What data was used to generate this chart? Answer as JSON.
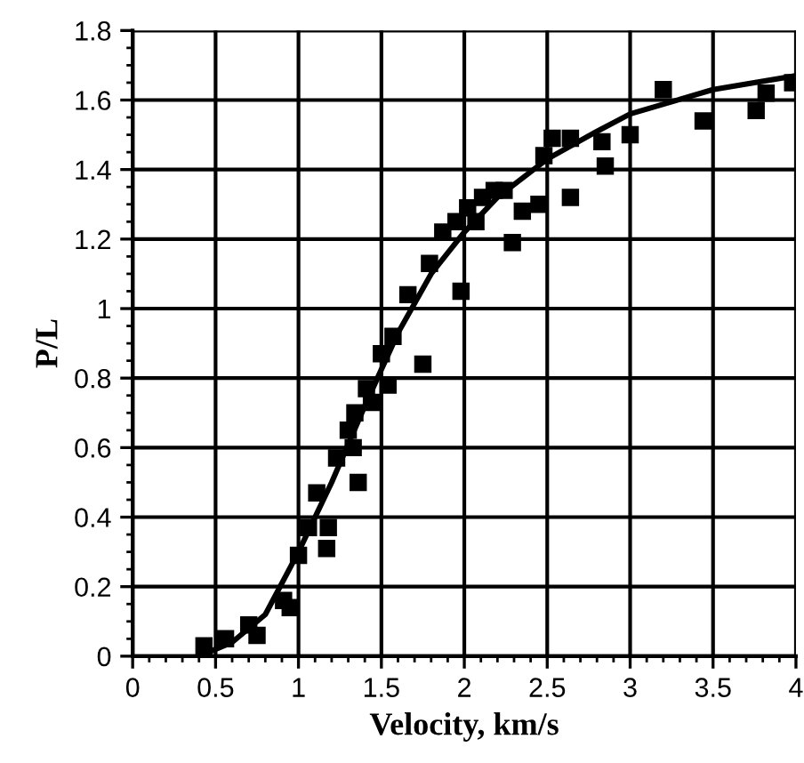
{
  "chart_data": {
    "type": "scatter",
    "xlabel": "Velocity, km/s",
    "ylabel": "P/L",
    "xlim": [
      0,
      4
    ],
    "ylim": [
      0,
      1.8
    ],
    "xticks": [
      0,
      {
        "value": 0.1,
        "label": null
      },
      {
        "value": 0.2,
        "label": null
      },
      {
        "value": 0.3,
        "label": null
      },
      {
        "value": 0.4,
        "label": null
      },
      0.5,
      {
        "value": 0.6,
        "label": null
      },
      {
        "value": 0.7,
        "label": null
      },
      {
        "value": 0.8,
        "label": null
      },
      {
        "value": 0.9,
        "label": null
      },
      1,
      {
        "value": 1.1,
        "label": null
      },
      {
        "value": 1.2,
        "label": null
      },
      {
        "value": 1.3,
        "label": null
      },
      {
        "value": 1.4,
        "label": null
      },
      1.5,
      {
        "value": 1.6,
        "label": null
      },
      {
        "value": 1.7,
        "label": null
      },
      {
        "value": 1.8,
        "label": null
      },
      {
        "value": 1.9,
        "label": null
      },
      2,
      {
        "value": 2.1,
        "label": null
      },
      {
        "value": 2.2,
        "label": null
      },
      {
        "value": 2.3,
        "label": null
      },
      {
        "value": 2.4,
        "label": null
      },
      2.5,
      {
        "value": 2.6,
        "label": null
      },
      {
        "value": 2.7,
        "label": null
      },
      {
        "value": 2.8,
        "label": null
      },
      {
        "value": 2.9,
        "label": null
      },
      3,
      {
        "value": 3.1,
        "label": null
      },
      {
        "value": 3.2,
        "label": null
      },
      {
        "value": 3.3,
        "label": null
      },
      {
        "value": 3.4,
        "label": null
      },
      3.5,
      {
        "value": 3.6,
        "label": null
      },
      {
        "value": 3.7,
        "label": null
      },
      {
        "value": 3.8,
        "label": null
      },
      {
        "value": 3.9,
        "label": null
      },
      4
    ],
    "yticks": [
      0,
      {
        "value": 0.05,
        "label": null
      },
      {
        "value": 0.1,
        "label": null
      },
      {
        "value": 0.15,
        "label": null
      },
      0.2,
      {
        "value": 0.25,
        "label": null
      },
      {
        "value": 0.3,
        "label": null
      },
      {
        "value": 0.35,
        "label": null
      },
      0.4,
      {
        "value": 0.45,
        "label": null
      },
      {
        "value": 0.5,
        "label": null
      },
      {
        "value": 0.55,
        "label": null
      },
      0.6,
      {
        "value": 0.65,
        "label": null
      },
      {
        "value": 0.7,
        "label": null
      },
      {
        "value": 0.75,
        "label": null
      },
      0.8,
      {
        "value": 0.85,
        "label": null
      },
      {
        "value": 0.9,
        "label": null
      },
      {
        "value": 0.95,
        "label": null
      },
      1,
      {
        "value": 1.05,
        "label": null
      },
      {
        "value": 1.1,
        "label": null
      },
      {
        "value": 1.15,
        "label": null
      },
      1.2,
      {
        "value": 1.25,
        "label": null
      },
      {
        "value": 1.3,
        "label": null
      },
      {
        "value": 1.35,
        "label": null
      },
      1.4,
      {
        "value": 1.45,
        "label": null
      },
      {
        "value": 1.5,
        "label": null
      },
      {
        "value": 1.55,
        "label": null
      },
      1.6,
      {
        "value": 1.65,
        "label": null
      },
      {
        "value": 1.7,
        "label": null
      },
      {
        "value": 1.75,
        "label": null
      },
      1.8
    ],
    "grid": true,
    "marker": "square",
    "series": [
      {
        "color": "#000000",
        "x": [
          0.43,
          0.56,
          0.7,
          0.75,
          0.91,
          0.95,
          1.0,
          1.06,
          1.17,
          1.18,
          1.11,
          1.23,
          1.36,
          1.33,
          1.3,
          1.39,
          1.41,
          1.34,
          1.44,
          1.54,
          1.5,
          1.75,
          1.57,
          1.66,
          1.79,
          1.98,
          1.87,
          1.95,
          2.02,
          2.07,
          2.11,
          2.18,
          2.24,
          2.29,
          2.35,
          2.45,
          2.64,
          2.48,
          2.53,
          2.64,
          2.83,
          2.85,
          3.0,
          3.2,
          3.44,
          3.76,
          3.82,
          3.98
        ],
        "values": [
          0.03,
          0.05,
          0.09,
          0.06,
          0.16,
          0.14,
          0.29,
          0.37,
          0.31,
          0.37,
          0.47,
          0.57,
          0.5,
          0.6,
          0.65,
          null,
          0.77,
          0.7,
          0.73,
          0.78,
          0.87,
          0.84,
          0.92,
          1.04,
          1.13,
          1.05,
          1.22,
          1.25,
          1.29,
          1.25,
          1.32,
          1.34,
          1.34,
          1.19,
          1.28,
          1.3,
          1.32,
          1.44,
          1.49,
          1.49,
          1.48,
          1.41,
          1.5,
          1.63,
          1.54,
          1.57,
          1.62,
          1.65
        ]
      },
      {
        "type": "line",
        "color": "#000000",
        "marker": "none",
        "x": [
          0.4,
          0.6,
          0.8,
          1.0,
          1.2,
          1.4,
          1.6,
          1.8,
          2.0,
          2.2,
          2.5,
          2.8,
          3.0,
          3.5,
          4.0
        ],
        "values": [
          0.0,
          0.04,
          0.12,
          0.3,
          0.5,
          0.72,
          0.93,
          1.1,
          1.22,
          1.32,
          1.43,
          1.51,
          1.56,
          1.63,
          1.67
        ]
      }
    ]
  }
}
